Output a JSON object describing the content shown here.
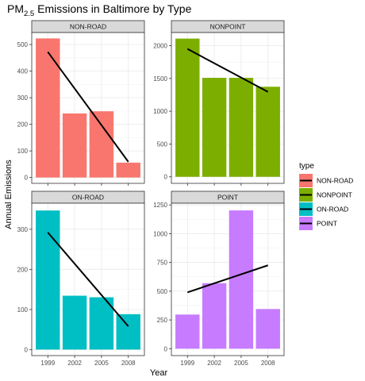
{
  "chart_data": {
    "type": "bar",
    "title": "PM2.5 Emissions in Baltimore by Type",
    "title_parts": {
      "base": "PM",
      "sub": "2.5",
      "rest": " Emissions in Baltimore by Type"
    },
    "xlabel": "Year",
    "ylabel": "Annual Emissions",
    "categories": [
      "1999",
      "2002",
      "2005",
      "2008"
    ],
    "grid": true,
    "legend": {
      "title": "type",
      "placement": "right",
      "items": [
        {
          "label": "NON-ROAD",
          "color": "#F8766D"
        },
        {
          "label": "NONPOINT",
          "color": "#7CAE00"
        },
        {
          "label": "ON-ROAD",
          "color": "#00BFC4"
        },
        {
          "label": "POINT",
          "color": "#C77CFF"
        }
      ]
    },
    "panels": [
      {
        "name": "NON-ROAD",
        "color": "#F8766D",
        "values": [
          522.94,
          240.85,
          248.93,
          55.82
        ],
        "trend": [
          472,
          59
        ],
        "ylim": [
          -22,
          545
        ],
        "yticks": [
          0,
          100,
          200,
          300,
          400,
          500
        ]
      },
      {
        "name": "NONPOINT",
        "color": "#7CAE00",
        "values": [
          2107.63,
          1509.5,
          1509.5,
          1373.21
        ],
        "trend": [
          1950,
          1295
        ],
        "ylim": [
          -100,
          2200
        ],
        "yticks": [
          0,
          500,
          1000,
          1500,
          2000
        ]
      },
      {
        "name": "ON-ROAD",
        "color": "#00BFC4",
        "values": [
          346.82,
          134.31,
          130.43,
          88.28
        ],
        "trend": [
          292,
          58
        ],
        "ylim": [
          -15,
          365
        ],
        "yticks": [
          0,
          100,
          200,
          300
        ]
      },
      {
        "name": "POINT",
        "color": "#C77CFF",
        "values": [
          296.8,
          569.26,
          1202.49,
          344.98
        ],
        "trend": [
          490,
          725
        ],
        "ylim": [
          -60,
          1265
        ],
        "yticks": [
          0,
          250,
          500,
          750,
          1000,
          1250
        ]
      }
    ]
  }
}
